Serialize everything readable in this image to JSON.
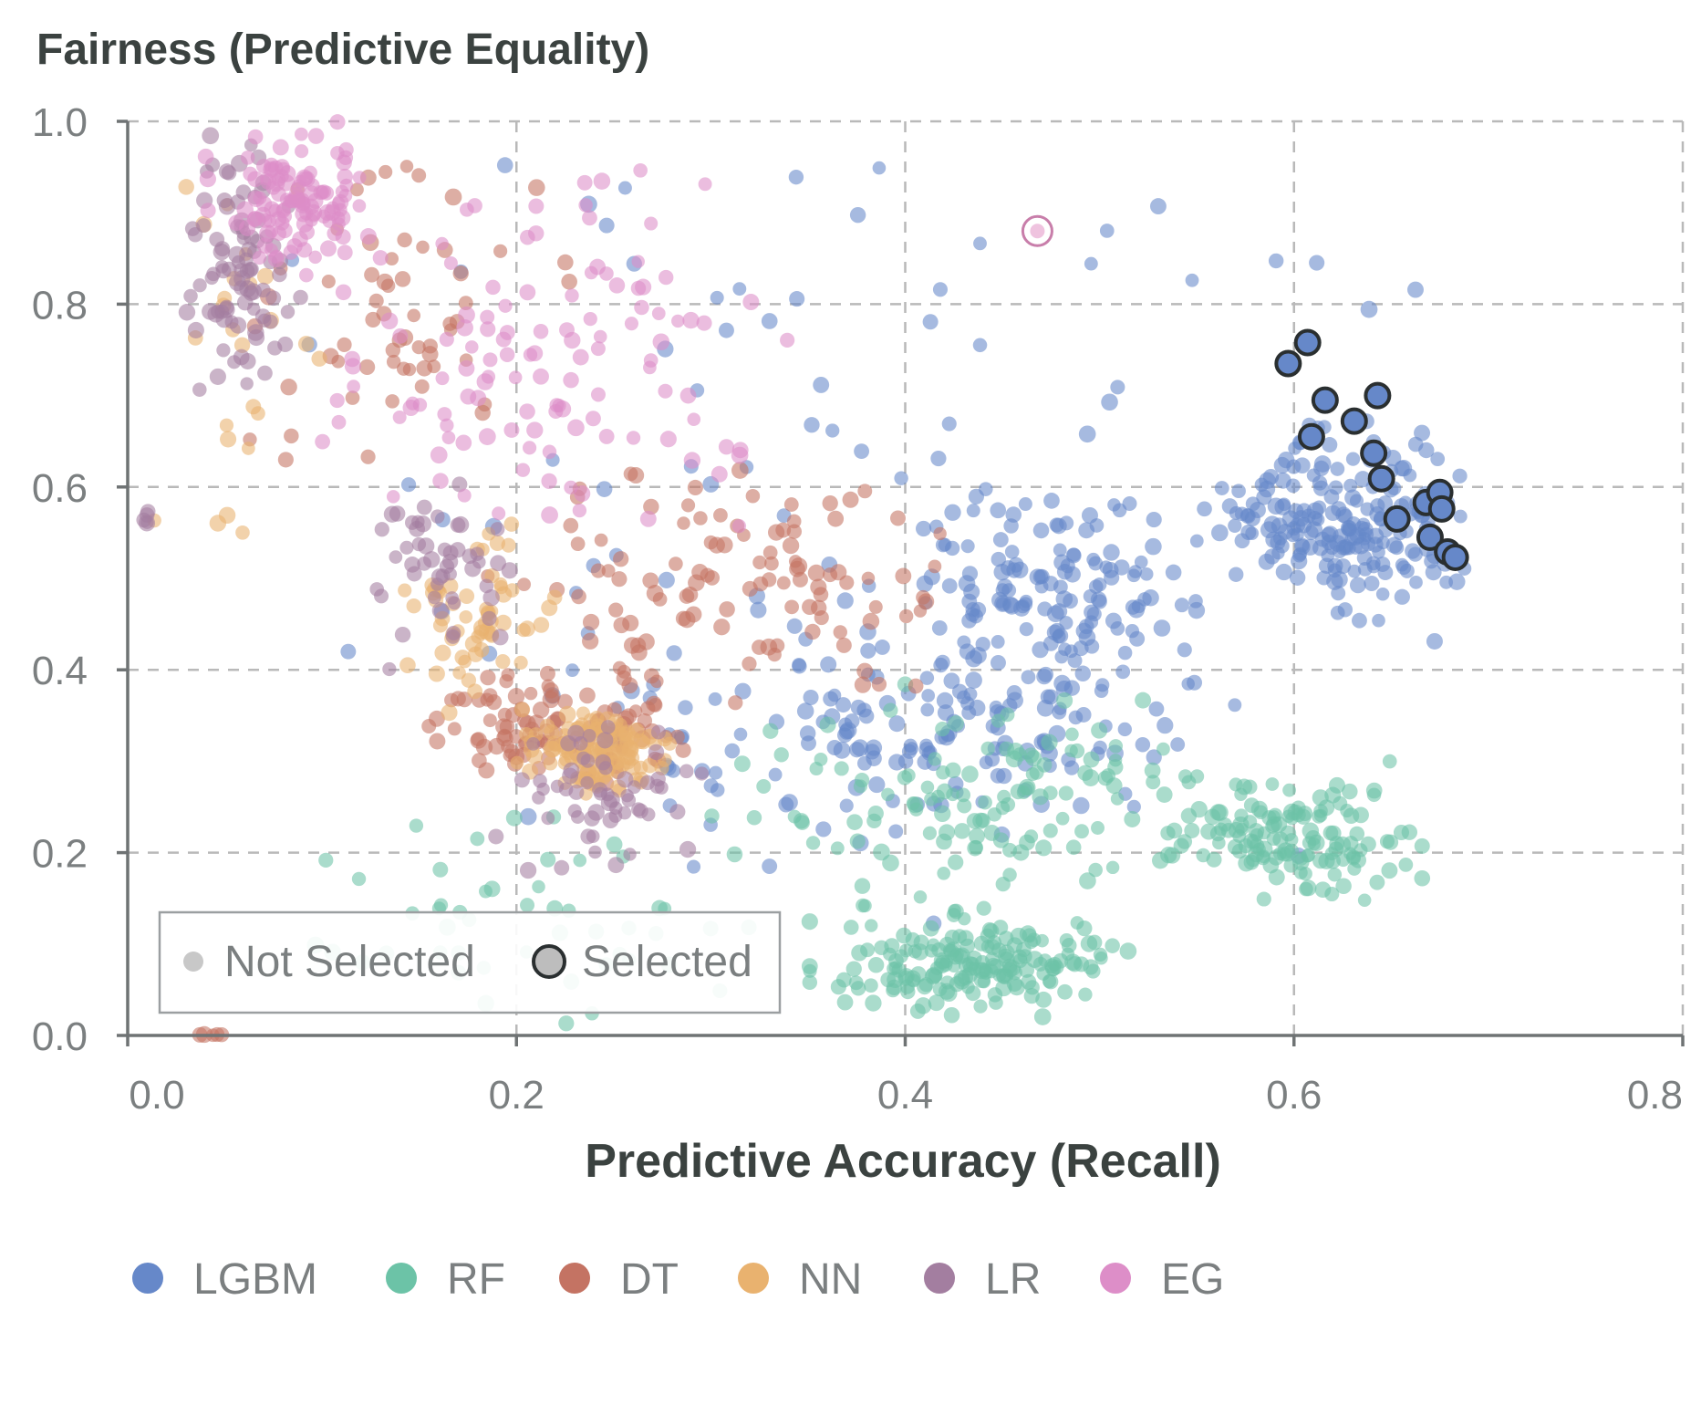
{
  "chart_data": {
    "type": "scatter",
    "title": "Fairness (Predictive Equality)",
    "xlabel": "Predictive Accuracy (Recall)",
    "ylabel": "",
    "xlim": [
      0,
      0.8
    ],
    "ylim": [
      0,
      1.0
    ],
    "x_ticks": [
      "0.0",
      "0.2",
      "0.4",
      "0.6",
      "0.8"
    ],
    "y_ticks": [
      "0.0",
      "0.2",
      "0.4",
      "0.6",
      "0.8",
      "1.0"
    ],
    "grid": true,
    "selection_legend": {
      "placement": "bottom-left",
      "items": [
        {
          "label": "Not Selected",
          "color": "#c8c8c8"
        },
        {
          "label": "Selected",
          "color": "#bdbdbd"
        }
      ]
    },
    "legend": {
      "placement": "bottom",
      "items": [
        {
          "label": "LGBM",
          "color": "#6688c9"
        },
        {
          "label": "RF",
          "color": "#6cc3a7"
        },
        {
          "label": "DT",
          "color": "#c47363"
        },
        {
          "label": "NN",
          "color": "#e9b26f"
        },
        {
          "label": "LR",
          "color": "#a37ea0"
        },
        {
          "label": "EG",
          "color": "#dd8ec8"
        }
      ]
    },
    "series": [
      {
        "name": "LGBM",
        "color": "#6688c9",
        "selected_points": [
          {
            "x": 0.597,
            "y": 0.735
          },
          {
            "x": 0.607,
            "y": 0.758
          },
          {
            "x": 0.609,
            "y": 0.655
          },
          {
            "x": 0.616,
            "y": 0.695
          },
          {
            "x": 0.631,
            "y": 0.672
          },
          {
            "x": 0.643,
            "y": 0.7
          },
          {
            "x": 0.641,
            "y": 0.637
          },
          {
            "x": 0.645,
            "y": 0.609
          },
          {
            "x": 0.653,
            "y": 0.565
          },
          {
            "x": 0.668,
            "y": 0.583
          },
          {
            "x": 0.675,
            "y": 0.594
          },
          {
            "x": 0.676,
            "y": 0.576
          },
          {
            "x": 0.67,
            "y": 0.545
          },
          {
            "x": 0.679,
            "y": 0.529
          },
          {
            "x": 0.683,
            "y": 0.523
          }
        ],
        "clusters": [
          {
            "x_range": [
              0.56,
              0.69
            ],
            "y_range": [
              0.45,
              0.68
            ],
            "count": 200
          },
          {
            "x_range": [
              0.4,
              0.56
            ],
            "y_range": [
              0.38,
              0.6
            ],
            "count": 120
          },
          {
            "x_range": [
              0.25,
              0.58
            ],
            "y_range": [
              0.22,
              0.44
            ],
            "count": 150
          },
          {
            "x_range": [
              0.08,
              0.7
            ],
            "y_range": [
              0.12,
              0.98
            ],
            "count": 120
          }
        ]
      },
      {
        "name": "RF",
        "color": "#6cc3a7",
        "clusters": [
          {
            "x_range": [
              0.35,
              0.52
            ],
            "y_range": [
              0.02,
              0.14
            ],
            "count": 180
          },
          {
            "x_range": [
              0.53,
              0.67
            ],
            "y_range": [
              0.14,
              0.3
            ],
            "count": 140
          },
          {
            "x_range": [
              0.3,
              0.58
            ],
            "y_range": [
              0.12,
              0.4
            ],
            "count": 130
          },
          {
            "x_range": [
              0.09,
              0.35
            ],
            "y_range": [
              0.0,
              0.26
            ],
            "count": 50
          }
        ]
      },
      {
        "name": "DT",
        "color": "#c47363",
        "clusters": [
          {
            "x_range": [
              0.15,
              0.29
            ],
            "y_range": [
              0.27,
              0.4
            ],
            "count": 110
          },
          {
            "x_range": [
              0.18,
              0.44
            ],
            "y_range": [
              0.36,
              0.62
            ],
            "count": 110
          },
          {
            "x_range": [
              0.06,
              0.23
            ],
            "y_range": [
              0.6,
              0.96
            ],
            "count": 60
          },
          {
            "x_range": [
              0.035,
              0.05
            ],
            "y_range": [
              0.0,
              0.002
            ],
            "count": 5
          }
        ]
      },
      {
        "name": "NN",
        "color": "#e9b26f",
        "clusters": [
          {
            "x_range": [
              0.2,
              0.28
            ],
            "y_range": [
              0.26,
              0.36
            ],
            "count": 120
          },
          {
            "x_range": [
              0.14,
              0.22
            ],
            "y_range": [
              0.35,
              0.56
            ],
            "count": 60
          },
          {
            "x_range": [
              0.01,
              0.1
            ],
            "y_range": [
              0.55,
              0.99
            ],
            "count": 25
          }
        ]
      },
      {
        "name": "LR",
        "color": "#a37ea0",
        "clusters": [
          {
            "x_range": [
              0.03,
              0.09
            ],
            "y_range": [
              0.7,
              0.99
            ],
            "count": 90
          },
          {
            "x_range": [
              0.12,
              0.2
            ],
            "y_range": [
              0.4,
              0.62
            ],
            "count": 50
          },
          {
            "x_range": [
              0.18,
              0.3
            ],
            "y_range": [
              0.18,
              0.35
            ],
            "count": 60
          },
          {
            "x_range": [
              0.008,
              0.012
            ],
            "y_range": [
              0.55,
              0.58
            ],
            "count": 5
          }
        ]
      },
      {
        "name": "EG",
        "color": "#dd8ec8",
        "special_point": {
          "x": 0.468,
          "y": 0.88
        },
        "clusters": [
          {
            "x_range": [
              0.04,
              0.13
            ],
            "y_range": [
              0.83,
              1.0
            ],
            "count": 120
          },
          {
            "x_range": [
              0.1,
              0.34
            ],
            "y_range": [
              0.55,
              0.95
            ],
            "count": 120
          }
        ]
      }
    ]
  }
}
